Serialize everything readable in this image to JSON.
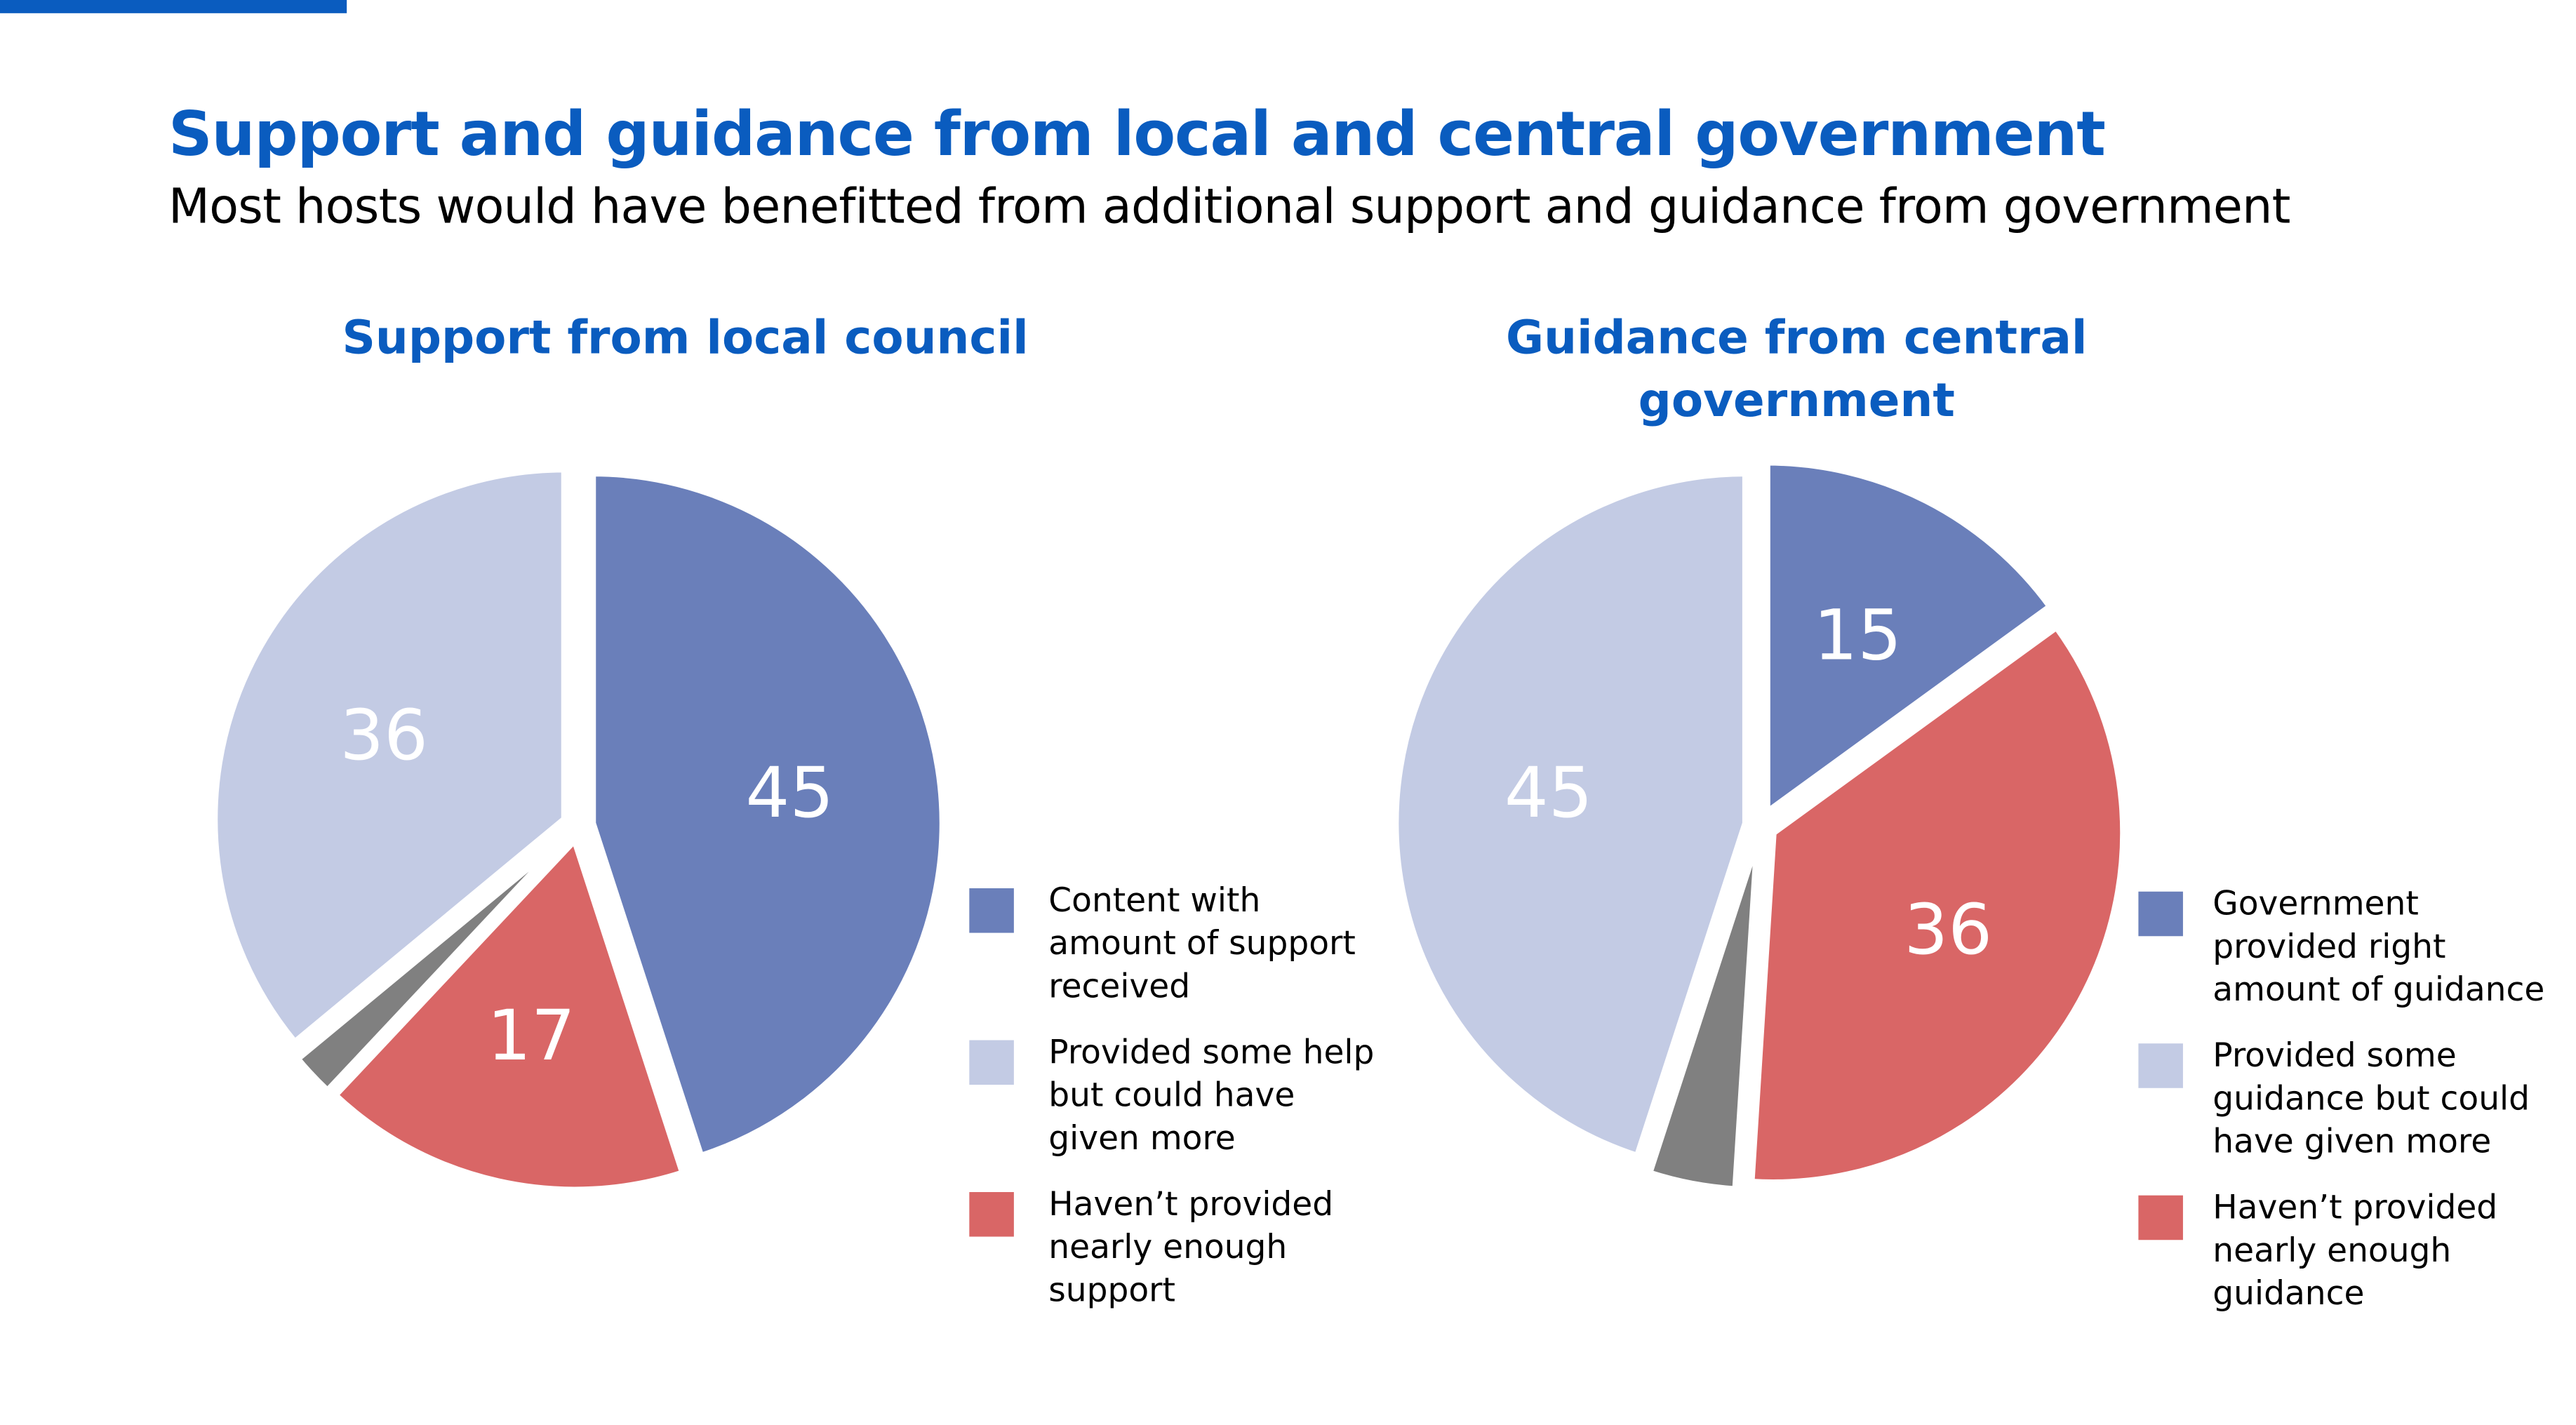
{
  "header": {
    "title": "Support and guidance from local and central government",
    "subtitle": "Most hosts would have benefitted from additional support and guidance from government"
  },
  "colors": {
    "accent": "#0a5cbf",
    "blue": "#6a7fba",
    "light": "#c3cbe4",
    "red": "#d96666",
    "grey": "#808080"
  },
  "chart_data": [
    {
      "type": "pie",
      "title": "Support from local council",
      "slices": [
        {
          "label": "Content with amount of support received",
          "value": 45,
          "shown": "45",
          "color": "#6a7fba"
        },
        {
          "label": "Haven’t provided nearly enough support",
          "value": 17,
          "shown": "17",
          "color": "#d96666"
        },
        {
          "label": "",
          "value": 2,
          "shown": "",
          "color": "#808080"
        },
        {
          "label": "Provided some help but could have given more",
          "value": 36,
          "shown": "36",
          "color": "#c3cbe4"
        }
      ],
      "legend": [
        "Content with amount of support received",
        "Provided some help but could have given more",
        "Haven’t provided nearly enough support"
      ]
    },
    {
      "type": "pie",
      "title": "Guidance from central government",
      "slices": [
        {
          "label": "Government provided right amount of guidance",
          "value": 15,
          "shown": "15",
          "color": "#6a7fba"
        },
        {
          "label": "Haven’t provided nearly enough guidance",
          "value": 36,
          "shown": "36",
          "color": "#d96666"
        },
        {
          "label": "",
          "value": 4,
          "shown": "",
          "color": "#808080"
        },
        {
          "label": "Provided some guidance but could have given more",
          "value": 45,
          "shown": "45",
          "color": "#c3cbe4"
        }
      ],
      "legend": [
        "Government provided right amount of guidance",
        "Provided some guidance but could have given more",
        "Haven’t provided nearly enough guidance"
      ]
    }
  ]
}
